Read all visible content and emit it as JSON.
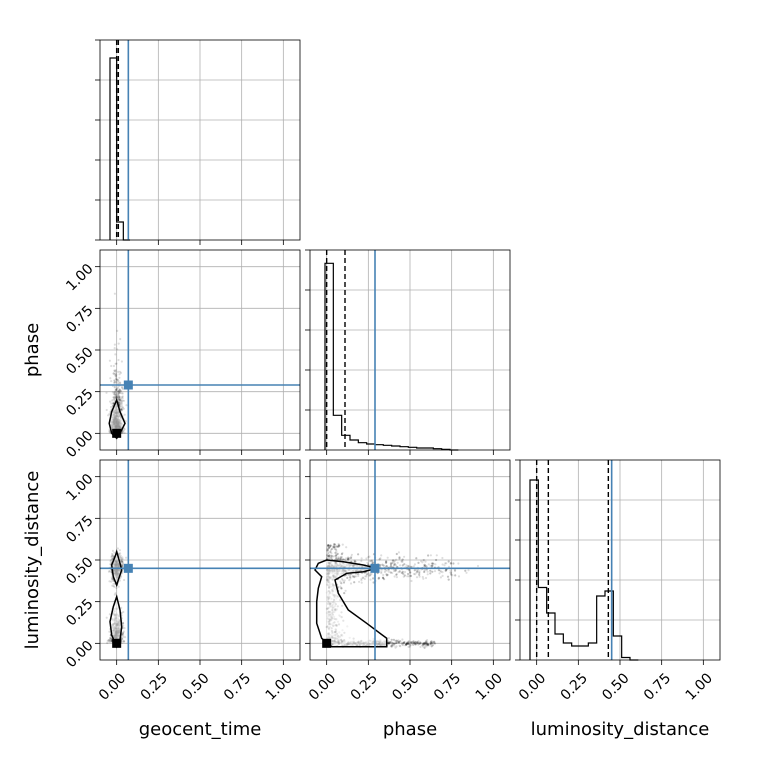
{
  "chart_data": {
    "type": "corner",
    "parameters": [
      "geocent_time",
      "phase",
      "luminosity_distance"
    ],
    "axis_range": [
      -0.1,
      1.1
    ],
    "ticks": [
      0,
      0.25,
      0.5,
      0.75,
      1
    ],
    "tick_labels": [
      "0.00",
      "0.25",
      "0.50",
      "0.75",
      "1.00"
    ],
    "grid": true,
    "truth_color": "#4682b4",
    "truths": {
      "geocent_time": 0.07,
      "phase": 0.29,
      "luminosity_distance": 0.45
    },
    "histograms": {
      "geocent_time": {
        "bin_edges": [
          -0.04,
          0.0,
          0.04,
          0.08
        ],
        "counts": [
          0.91,
          0.09,
          0.0
        ],
        "quantiles": [
          0.0,
          0.01
        ],
        "plot_max": 1.0
      },
      "phase": {
        "bin_edges": [
          -0.01,
          0.04,
          0.09,
          0.14,
          0.19,
          0.24,
          0.29,
          0.34,
          0.39,
          0.44,
          0.49,
          0.54,
          0.59,
          0.64,
          0.69,
          0.74,
          0.79
        ],
        "counts": [
          0.28,
          0.052,
          0.022,
          0.015,
          0.011,
          0.009,
          0.008,
          0.007,
          0.006,
          0.005,
          0.004,
          0.003,
          0.003,
          0.002,
          0.001,
          0.0
        ],
        "quantiles": [
          0.0,
          0.11
        ],
        "plot_max": 0.3
      },
      "luminosity_distance": {
        "bin_edges": [
          -0.04,
          0.01,
          0.06,
          0.11,
          0.16,
          0.21,
          0.26,
          0.31,
          0.36,
          0.41,
          0.46,
          0.51,
          0.56,
          0.61
        ],
        "counts": [
          0.36,
          0.145,
          0.094,
          0.052,
          0.034,
          0.028,
          0.028,
          0.034,
          0.128,
          0.138,
          0.048,
          0.005,
          0.0
        ],
        "quantiles": [
          0.0,
          0.07,
          0.43
        ],
        "plot_max": 0.4
      }
    },
    "marginal_2d": {
      "phase|geocent_time": {
        "point_count": 900,
        "max_point": [
          0.0,
          0.0
        ],
        "contours": [
          [
            [
              -0.03,
              0.0
            ],
            [
              -0.045,
              0.06
            ],
            [
              -0.03,
              0.13
            ],
            [
              0.0,
              0.2
            ],
            [
              0.02,
              0.13
            ],
            [
              0.05,
              0.06
            ],
            [
              0.02,
              0.0
            ],
            [
              0.0,
              -0.03
            ],
            [
              -0.03,
              0.0
            ]
          ]
        ]
      },
      "luminosity_distance|geocent_time": {
        "point_count": 900,
        "max_point": [
          0.0,
          0.0
        ],
        "contours": [
          [
            [
              -0.03,
              0.05
            ],
            [
              -0.04,
              0.13
            ],
            [
              -0.02,
              0.22
            ],
            [
              0.0,
              0.28
            ],
            [
              0.02,
              0.2
            ],
            [
              0.03,
              0.1
            ],
            [
              0.02,
              0.02
            ],
            [
              0.0,
              -0.02
            ],
            [
              -0.03,
              0.05
            ]
          ],
          [
            [
              -0.03,
              0.47
            ],
            [
              -0.01,
              0.52
            ],
            [
              0.0,
              0.55
            ],
            [
              0.02,
              0.48
            ],
            [
              0.03,
              0.44
            ],
            [
              0.01,
              0.38
            ],
            [
              0.0,
              0.35
            ],
            [
              -0.02,
              0.4
            ],
            [
              -0.03,
              0.47
            ]
          ]
        ]
      },
      "luminosity_distance|phase": {
        "point_count": 1800,
        "max_point": [
          0.0,
          0.0
        ],
        "contours": [
          [
            [
              -0.05,
              0.48
            ],
            [
              0.0,
              0.5
            ],
            [
              0.1,
              0.49
            ],
            [
              0.22,
              0.47
            ],
            [
              0.3,
              0.45
            ],
            [
              0.22,
              0.43
            ],
            [
              0.12,
              0.42
            ],
            [
              0.05,
              0.38
            ],
            [
              0.07,
              0.3
            ],
            [
              0.13,
              0.2
            ],
            [
              0.24,
              0.12
            ],
            [
              0.36,
              0.03
            ],
            [
              0.36,
              -0.02
            ],
            [
              0.2,
              -0.02
            ],
            [
              0.03,
              -0.02
            ],
            [
              -0.03,
              0.03
            ],
            [
              -0.06,
              0.12
            ],
            [
              -0.06,
              0.25
            ],
            [
              -0.05,
              0.33
            ],
            [
              -0.03,
              0.4
            ],
            [
              -0.07,
              0.44
            ],
            [
              -0.05,
              0.48
            ]
          ]
        ]
      }
    }
  }
}
